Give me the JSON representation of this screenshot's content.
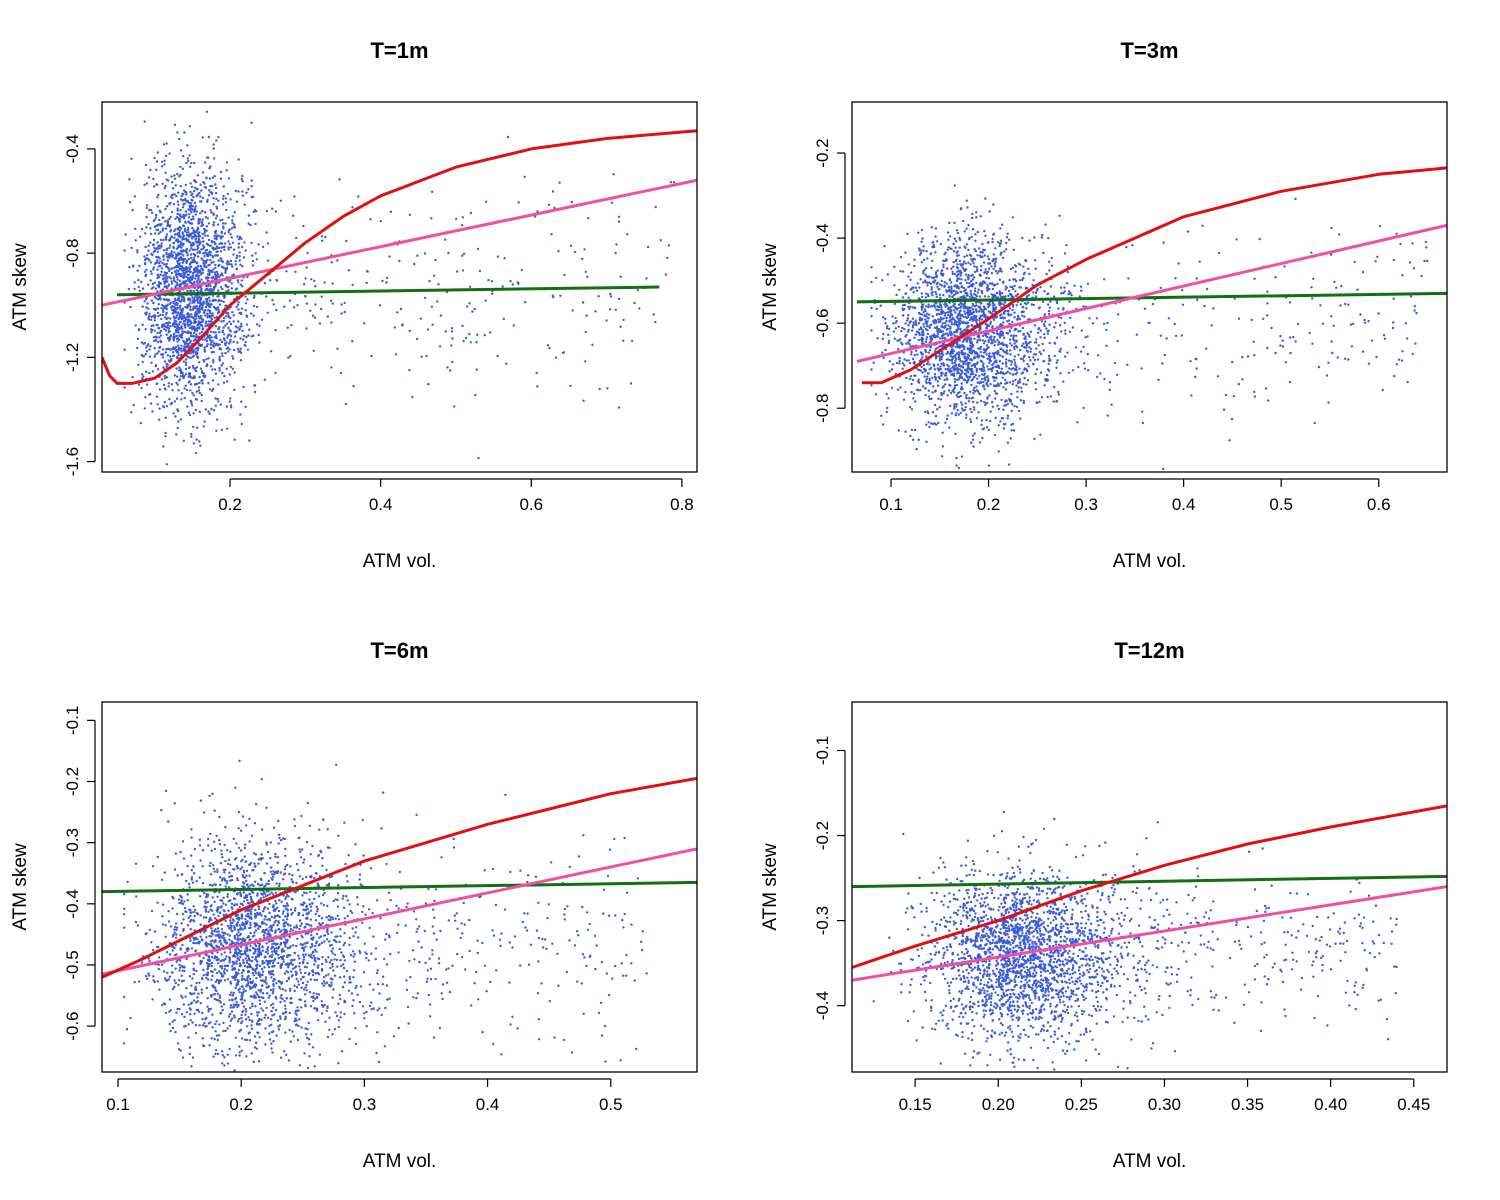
{
  "colors": {
    "points": "#3b5bdb",
    "red_curve": "#e01010",
    "pink_line": "#f050a0",
    "green_line": "#127012"
  },
  "chart_data": [
    {
      "type": "scatter",
      "title": "T=1m",
      "xlabel": "ATM vol.",
      "ylabel": "ATM skew",
      "xlim": [
        0.03,
        0.82
      ],
      "ylim": [
        -1.64,
        -0.22
      ],
      "xticks": [
        0.2,
        0.4,
        0.6,
        0.8
      ],
      "xtick_labels": [
        "0.2",
        "0.4",
        "0.6",
        "0.8"
      ],
      "yticks": [
        -1.6,
        -1.2,
        -0.8,
        -0.4
      ],
      "ytick_labels": [
        "-1.6",
        "-1.2",
        "-0.8",
        "-0.4"
      ],
      "scatter_cloud": {
        "count": 2600,
        "x_center": 0.13,
        "x_scale": 0.045,
        "y_center": -0.95,
        "y_scale": 0.22,
        "x_min": 0.06,
        "x_max": 0.79
      },
      "red_curve": [
        [
          0.03,
          -1.2
        ],
        [
          0.04,
          -1.27
        ],
        [
          0.05,
          -1.3
        ],
        [
          0.07,
          -1.3
        ],
        [
          0.1,
          -1.28
        ],
        [
          0.13,
          -1.22
        ],
        [
          0.16,
          -1.13
        ],
        [
          0.2,
          -1.0
        ],
        [
          0.25,
          -0.88
        ],
        [
          0.3,
          -0.76
        ],
        [
          0.35,
          -0.66
        ],
        [
          0.4,
          -0.58
        ],
        [
          0.5,
          -0.47
        ],
        [
          0.6,
          -0.4
        ],
        [
          0.7,
          -0.36
        ],
        [
          0.82,
          -0.33
        ]
      ],
      "pink_line": [
        [
          0.03,
          -1.0
        ],
        [
          0.82,
          -0.52
        ]
      ],
      "green_line": [
        [
          0.05,
          -0.96
        ],
        [
          0.77,
          -0.93
        ]
      ]
    },
    {
      "type": "scatter",
      "title": "T=3m",
      "xlabel": "ATM vol.",
      "ylabel": "ATM skew",
      "xlim": [
        0.06,
        0.67
      ],
      "ylim": [
        -0.95,
        -0.08
      ],
      "xticks": [
        0.1,
        0.2,
        0.3,
        0.4,
        0.5,
        0.6
      ],
      "xtick_labels": [
        "0.1",
        "0.2",
        "0.3",
        "0.4",
        "0.5",
        "0.6"
      ],
      "yticks": [
        -0.8,
        -0.6,
        -0.4,
        -0.2
      ],
      "ytick_labels": [
        "-0.8",
        "-0.6",
        "-0.4",
        "-0.2"
      ],
      "scatter_cloud": {
        "count": 2600,
        "x_center": 0.16,
        "x_scale": 0.05,
        "y_center": -0.62,
        "y_scale": 0.11,
        "x_min": 0.08,
        "x_max": 0.65
      },
      "red_curve": [
        [
          0.07,
          -0.74
        ],
        [
          0.09,
          -0.74
        ],
        [
          0.12,
          -0.71
        ],
        [
          0.16,
          -0.65
        ],
        [
          0.2,
          -0.59
        ],
        [
          0.25,
          -0.51
        ],
        [
          0.3,
          -0.45
        ],
        [
          0.35,
          -0.4
        ],
        [
          0.4,
          -0.35
        ],
        [
          0.45,
          -0.32
        ],
        [
          0.5,
          -0.29
        ],
        [
          0.55,
          -0.27
        ],
        [
          0.6,
          -0.25
        ],
        [
          0.67,
          -0.235
        ]
      ],
      "pink_line": [
        [
          0.065,
          -0.69
        ],
        [
          0.67,
          -0.37
        ]
      ],
      "green_line": [
        [
          0.065,
          -0.55
        ],
        [
          0.67,
          -0.53
        ]
      ]
    },
    {
      "type": "scatter",
      "title": "T=6m",
      "xlabel": "ATM vol.",
      "ylabel": "ATM skew",
      "xlim": [
        0.087,
        0.57
      ],
      "ylim": [
        -0.675,
        -0.07
      ],
      "xticks": [
        0.1,
        0.2,
        0.3,
        0.4,
        0.5
      ],
      "xtick_labels": [
        "0.1",
        "0.2",
        "0.3",
        "0.4",
        "0.5"
      ],
      "yticks": [
        -0.6,
        -0.5,
        -0.4,
        -0.3,
        -0.2,
        -0.1
      ],
      "ytick_labels": [
        "-0.6",
        "-0.5",
        "-0.4",
        "-0.3",
        "-0.2",
        "-0.1"
      ],
      "scatter_cloud": {
        "count": 2600,
        "x_center": 0.19,
        "x_scale": 0.055,
        "y_center": -0.47,
        "y_scale": 0.085,
        "x_min": 0.105,
        "x_max": 0.53
      },
      "red_curve": [
        [
          0.087,
          -0.52
        ],
        [
          0.12,
          -0.49
        ],
        [
          0.16,
          -0.45
        ],
        [
          0.2,
          -0.41
        ],
        [
          0.25,
          -0.37
        ],
        [
          0.3,
          -0.33
        ],
        [
          0.35,
          -0.3
        ],
        [
          0.4,
          -0.27
        ],
        [
          0.45,
          -0.245
        ],
        [
          0.5,
          -0.22
        ],
        [
          0.57,
          -0.195
        ]
      ],
      "pink_line": [
        [
          0.087,
          -0.515
        ],
        [
          0.57,
          -0.31
        ]
      ],
      "green_line": [
        [
          0.087,
          -0.38
        ],
        [
          0.57,
          -0.365
        ]
      ]
    },
    {
      "type": "scatter",
      "title": "T=12m",
      "xlabel": "ATM vol.",
      "ylabel": "ATM skew",
      "xlim": [
        0.112,
        0.47
      ],
      "ylim": [
        -0.478,
        -0.043
      ],
      "xticks": [
        0.15,
        0.2,
        0.25,
        0.3,
        0.35,
        0.4,
        0.45
      ],
      "xtick_labels": [
        "0.15",
        "0.20",
        "0.25",
        "0.30",
        "0.35",
        "0.40",
        "0.45"
      ],
      "yticks": [
        -0.4,
        -0.3,
        -0.2,
        -0.1
      ],
      "ytick_labels": [
        "-0.4",
        "-0.3",
        "-0.2",
        "-0.1"
      ],
      "scatter_cloud": {
        "count": 2600,
        "x_center": 0.2,
        "x_scale": 0.04,
        "y_center": -0.34,
        "y_scale": 0.05,
        "x_min": 0.125,
        "x_max": 0.44
      },
      "red_curve": [
        [
          0.112,
          -0.355
        ],
        [
          0.15,
          -0.33
        ],
        [
          0.2,
          -0.3
        ],
        [
          0.25,
          -0.265
        ],
        [
          0.3,
          -0.235
        ],
        [
          0.35,
          -0.21
        ],
        [
          0.4,
          -0.19
        ],
        [
          0.47,
          -0.165
        ]
      ],
      "pink_line": [
        [
          0.112,
          -0.37
        ],
        [
          0.47,
          -0.26
        ]
      ],
      "green_line": [
        [
          0.112,
          -0.26
        ],
        [
          0.47,
          -0.248
        ]
      ]
    }
  ]
}
